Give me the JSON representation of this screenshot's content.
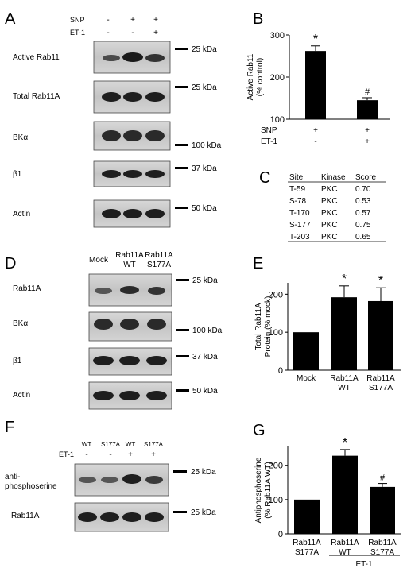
{
  "panels": {
    "A": {
      "letter": "A",
      "header_rows": [
        {
          "label": "SNP",
          "marks": [
            "-",
            "+",
            "+"
          ]
        },
        {
          "label": "ET-1",
          "marks": [
            "-",
            "-",
            "+"
          ]
        }
      ],
      "blots": [
        {
          "label": "Active Rab11",
          "marker": "25 kDa"
        },
        {
          "label": "Total Rab11A",
          "marker": "25 kDa"
        },
        {
          "label": "BKα",
          "marker": "100 kDa"
        },
        {
          "label": "β1",
          "marker": "37 kDa"
        },
        {
          "label": "Actin",
          "marker": "50 kDa"
        }
      ]
    },
    "C": {
      "letter": "C",
      "headers": [
        "Site",
        "Kinase",
        "Score"
      ],
      "rows": [
        [
          "T-59",
          "PKC",
          "0.70"
        ],
        [
          "S-78",
          "PKC",
          "0.53"
        ],
        [
          "T-170",
          "PKC",
          "0.57"
        ],
        [
          "S-177",
          "PKC",
          "0.75"
        ],
        [
          "T-203",
          "PKC",
          "0.65"
        ]
      ]
    },
    "D": {
      "letter": "D",
      "lanes": [
        [
          "Mock"
        ],
        [
          "Rab11A",
          "WT"
        ],
        [
          "Rab11A",
          "S177A"
        ]
      ],
      "blots": [
        {
          "label": "Rab11A",
          "marker": "25 kDa"
        },
        {
          "label": "BKα",
          "marker": "100 kDa"
        },
        {
          "label": "β1",
          "marker": "37 kDa"
        },
        {
          "label": "Actin",
          "marker": "50 kDa"
        }
      ]
    },
    "F": {
      "letter": "F",
      "lanes": [
        "WT",
        "S177A",
        "WT",
        "S177A"
      ],
      "et_label": "ET-1",
      "et_marks": [
        "-",
        "-",
        "+",
        "+"
      ],
      "blots": [
        {
          "label": [
            "anti-",
            "phosphoserine"
          ],
          "marker": "25 kDa"
        },
        {
          "label": [
            "Rab11A"
          ],
          "marker": "25 kDa"
        }
      ]
    }
  },
  "chart_data": [
    {
      "panel": "B",
      "type": "bar",
      "categories": [
        "SNP + / ET-1 -",
        "SNP + / ET-1 +"
      ],
      "values": [
        262,
        145
      ],
      "errors": [
        12,
        6
      ],
      "significance": [
        "*",
        "#"
      ],
      "ylabel": [
        "Active Rab11",
        "(% control)"
      ],
      "ylim": [
        100,
        300
      ],
      "yticks": [
        100,
        200,
        300
      ],
      "condition_rows": [
        {
          "label": "SNP",
          "marks": [
            "+",
            "+"
          ]
        },
        {
          "label": "ET-1",
          "marks": [
            "-",
            "+"
          ]
        }
      ]
    },
    {
      "panel": "E",
      "type": "bar",
      "categories": [
        [
          "Mock"
        ],
        [
          "Rab11A",
          "WT"
        ],
        [
          "Rab11A",
          "S177A"
        ]
      ],
      "values": [
        100,
        192,
        182
      ],
      "errors": [
        0,
        30,
        35
      ],
      "significance": [
        "",
        "*",
        "*"
      ],
      "ylabel": [
        "Total Rab11A",
        "Protein (% mock)"
      ],
      "ylim": [
        0,
        230
      ],
      "yticks": [
        0,
        100,
        200
      ]
    },
    {
      "panel": "G",
      "type": "bar",
      "categories": [
        [
          "Rab11A",
          "S177A"
        ],
        [
          "Rab11A",
          "WT"
        ],
        [
          "Rab11A",
          "S177A"
        ]
      ],
      "values": [
        100,
        228,
        137
      ],
      "errors": [
        0,
        18,
        10
      ],
      "significance": [
        "",
        "*",
        "#"
      ],
      "ylabel": [
        "Antiphosphoserine",
        "(% Rab11A WT)"
      ],
      "ylim": [
        0,
        255
      ],
      "yticks": [
        0,
        100,
        200
      ],
      "group_label": "ET-1"
    }
  ]
}
